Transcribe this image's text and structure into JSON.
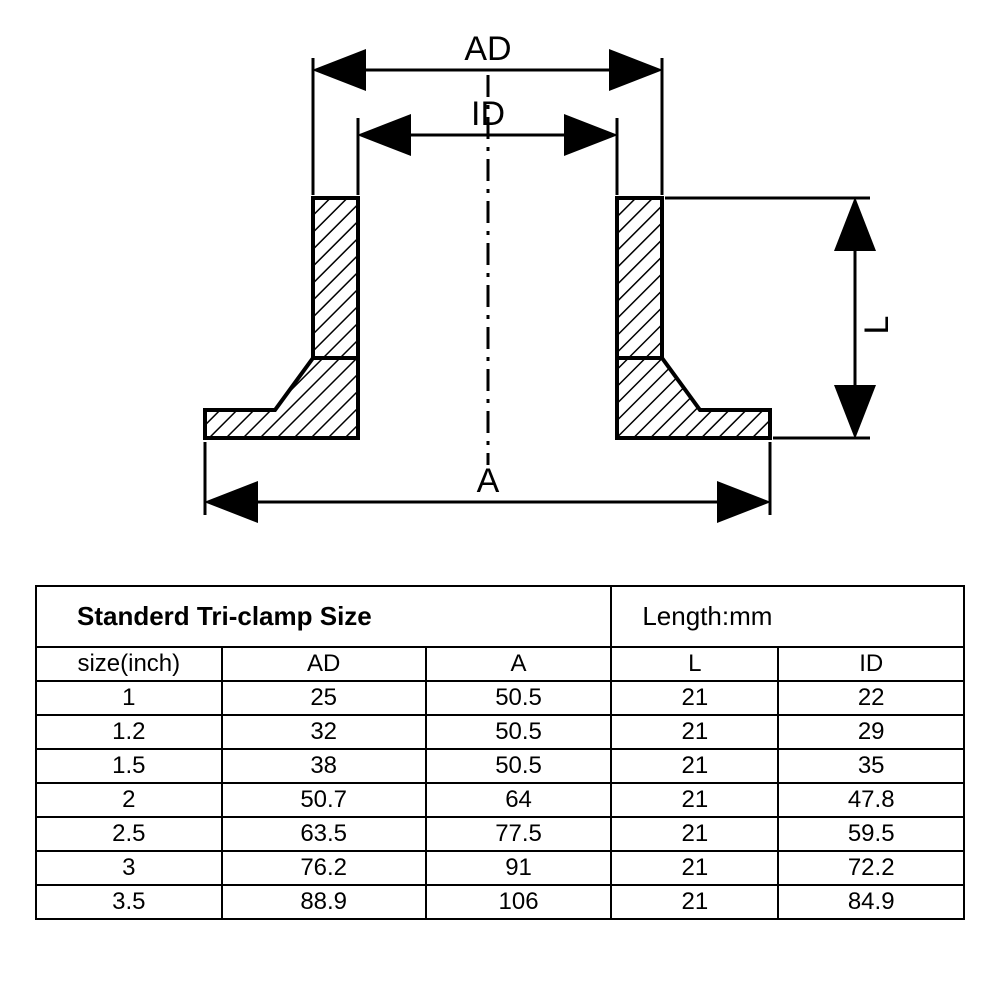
{
  "diagram": {
    "labels": {
      "AD": "AD",
      "ID": "ID",
      "A": "A",
      "L": "L"
    },
    "stroke": "#000000",
    "fill": "#000000",
    "stroke_width": 4
  },
  "table": {
    "title": "Standerd Tri-clamp Size",
    "unit_label": "Length:mm",
    "columns": [
      "size(inch)",
      "AD",
      "A",
      "L",
      "ID"
    ],
    "rows": [
      [
        "1",
        "25",
        "50.5",
        "21",
        "22"
      ],
      [
        "1.2",
        "32",
        "50.5",
        "21",
        "29"
      ],
      [
        "1.5",
        "38",
        "50.5",
        "21",
        "35"
      ],
      [
        "2",
        "50.7",
        "64",
        "21",
        "47.8"
      ],
      [
        "2.5",
        "63.5",
        "77.5",
        "21",
        "59.5"
      ],
      [
        "3",
        "76.2",
        "91",
        "21",
        "72.2"
      ],
      [
        "3.5",
        "88.9",
        "106",
        "21",
        "84.9"
      ]
    ],
    "col_widths_pct": [
      20,
      22,
      20,
      18,
      20
    ]
  }
}
